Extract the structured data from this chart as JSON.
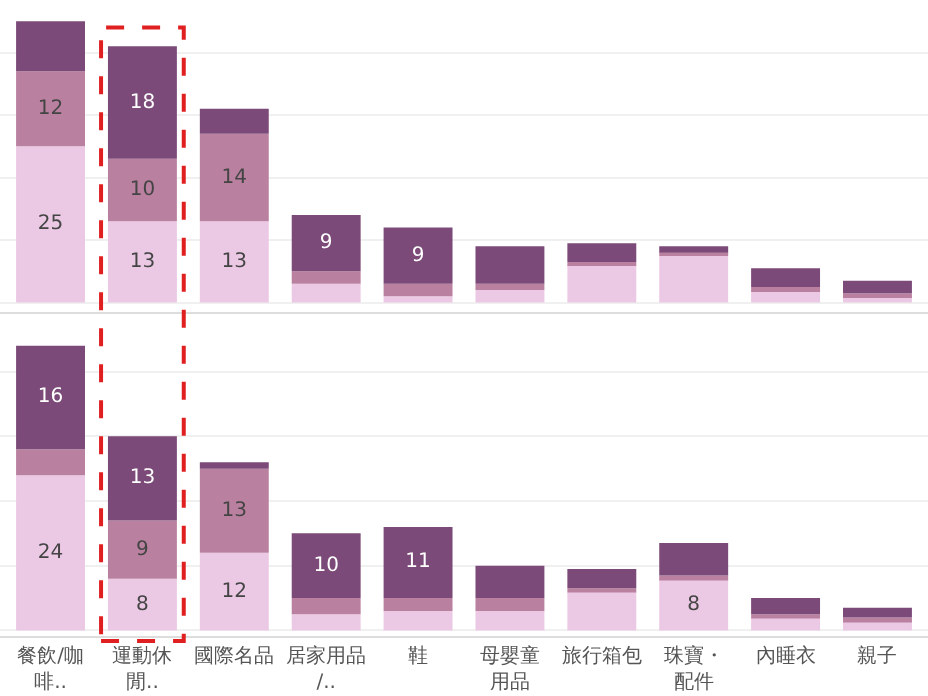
{
  "chart_data": [
    {
      "type": "bar",
      "stacked": true,
      "categories": [
        "餐飲/咖啡..",
        "運動休閒..",
        "國際名品",
        "居家用品/..",
        "鞋",
        "母嬰童用品",
        "旅行箱包",
        "珠寶・配件",
        "內睡衣",
        "親子"
      ],
      "series": [
        {
          "color": "#ebc8e4",
          "values": [
            25,
            13,
            13,
            3,
            1,
            2,
            6,
            7.5,
            2,
            1
          ],
          "value_labels": [
            "25",
            "13",
            "13",
            null,
            null,
            null,
            null,
            null,
            null,
            null
          ]
        },
        {
          "color": "#b9809f",
          "values": [
            12,
            10,
            14,
            2,
            2,
            1,
            0.5,
            0.5,
            0.5,
            0.5
          ],
          "value_labels": [
            "12",
            "10",
            "14",
            null,
            null,
            null,
            null,
            null,
            null,
            null
          ]
        },
        {
          "color": "#7b4a78",
          "values": [
            8,
            18,
            4,
            9,
            9,
            6,
            3,
            1,
            3,
            2
          ],
          "value_labels": [
            null,
            "18",
            null,
            "9",
            "9",
            null,
            null,
            null,
            null,
            null
          ]
        }
      ],
      "grid": "y",
      "tick_labels": false
    },
    {
      "type": "bar",
      "stacked": true,
      "categories": [
        "餐飲/咖啡..",
        "運動休閒..",
        "國際名品",
        "居家用品/..",
        "鞋",
        "母嬰童用品",
        "旅行箱包",
        "珠寶・配件",
        "內睡衣",
        "親子"
      ],
      "series": [
        {
          "color": "#ebc8e4",
          "values": [
            24,
            8,
            12,
            2.5,
            3,
            3,
            6,
            8,
            2,
            1.5
          ],
          "value_labels": [
            "24",
            "8",
            "12",
            null,
            null,
            null,
            null,
            "8",
            null,
            null
          ]
        },
        {
          "color": "#b9809f",
          "values": [
            4,
            9,
            13,
            2.5,
            2,
            2,
            0.5,
            0.5,
            0.5,
            0.5
          ],
          "value_labels": [
            null,
            "9",
            "13",
            null,
            null,
            null,
            null,
            null,
            null,
            null
          ]
        },
        {
          "color": "#7b4a78",
          "values": [
            16,
            13,
            1,
            10,
            11,
            5,
            3,
            5,
            2.5,
            1.5
          ],
          "value_labels": [
            "16",
            "13",
            null,
            "10",
            "11",
            null,
            null,
            null,
            null,
            null
          ]
        }
      ],
      "grid": "y",
      "tick_labels": "x"
    }
  ]
}
